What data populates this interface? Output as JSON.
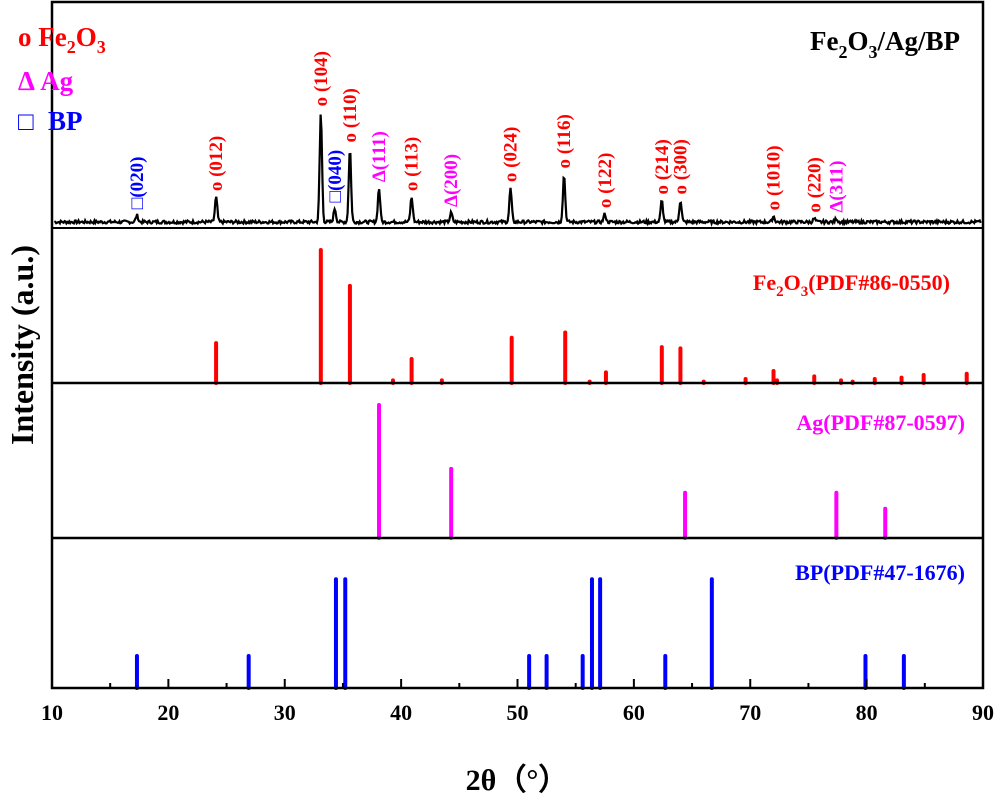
{
  "chart_data": {
    "type": "bar",
    "title": "Fe2O3/Ag/BP",
    "xlabel": "2θ（°）",
    "ylabel": "Intensity (a.u.)",
    "xlim": [
      10,
      90
    ],
    "xticks": [
      10,
      20,
      30,
      40,
      50,
      60,
      70,
      80,
      90
    ],
    "grid": false,
    "legend": [
      {
        "symbol": "o",
        "label": "Fe2O3",
        "color": "#ff0000"
      },
      {
        "symbol": "Δ",
        "label": "Ag",
        "color": "#ff00ff"
      },
      {
        "symbol": "□",
        "label": "BP",
        "color": "#0000ff"
      }
    ],
    "panels": [
      {
        "name": "Fe2O3/Ag/BP",
        "type": "line",
        "color": "#000000",
        "peaks": [
          {
            "x": 17.3,
            "h": 0.06,
            "label": "(020)",
            "phase": "BP"
          },
          {
            "x": 24.1,
            "h": 0.22,
            "label": "(012)",
            "phase": "Fe2O3"
          },
          {
            "x": 33.1,
            "h": 0.97,
            "label": "(104)",
            "phase": "Fe2O3"
          },
          {
            "x": 34.3,
            "h": 0.12,
            "label": "(040)",
            "phase": "BP"
          },
          {
            "x": 35.6,
            "h": 0.65,
            "label": "(110)",
            "phase": "Fe2O3"
          },
          {
            "x": 38.1,
            "h": 0.3,
            "label": "(111)",
            "phase": "Ag"
          },
          {
            "x": 40.9,
            "h": 0.22,
            "label": "(113)",
            "phase": "Fe2O3"
          },
          {
            "x": 44.3,
            "h": 0.08,
            "label": "(200)",
            "phase": "Ag"
          },
          {
            "x": 49.4,
            "h": 0.3,
            "label": "(024)",
            "phase": "Fe2O3"
          },
          {
            "x": 54.0,
            "h": 0.42,
            "label": "(116)",
            "phase": "Fe2O3"
          },
          {
            "x": 57.5,
            "h": 0.07,
            "label": "(122)",
            "phase": "Fe2O3"
          },
          {
            "x": 62.4,
            "h": 0.19,
            "label": "(214)",
            "phase": "Fe2O3"
          },
          {
            "x": 64.0,
            "h": 0.19,
            "label": "(300)",
            "phase": "Fe2O3"
          },
          {
            "x": 72.0,
            "h": 0.05,
            "label": "(1010)",
            "phase": "Fe2O3"
          },
          {
            "x": 75.5,
            "h": 0.03,
            "label": "(220)",
            "phase": "Fe2O3"
          },
          {
            "x": 77.4,
            "h": 0.03,
            "label": "(311)",
            "phase": "Ag"
          }
        ]
      },
      {
        "name": "Fe2O3(PDF#86-0550)",
        "color": "#ff0000",
        "x": [
          24.1,
          33.1,
          35.6,
          39.3,
          40.9,
          43.5,
          49.5,
          54.1,
          56.2,
          57.6,
          62.4,
          64.0,
          66.0,
          69.6,
          72.0,
          72.3,
          75.5,
          77.8,
          78.8,
          80.7,
          83.0,
          84.9,
          88.6
        ],
        "values": [
          30,
          100,
          73,
          2,
          18,
          2,
          34,
          38,
          1,
          8,
          27,
          26,
          1,
          3,
          9,
          2,
          5,
          2,
          1,
          3,
          4,
          6,
          7
        ]
      },
      {
        "name": "Ag(PDF#87-0597)",
        "color": "#ff00ff",
        "x": [
          38.1,
          44.3,
          64.4,
          77.4,
          81.6
        ],
        "values": [
          100,
          52,
          34,
          34,
          22
        ]
      },
      {
        "name": "BP(PDF#47-1676)",
        "color": "#0000ff",
        "x": [
          17.3,
          26.9,
          34.4,
          35.2,
          51.0,
          52.5,
          55.6,
          56.4,
          57.1,
          62.7,
          66.7,
          79.9,
          83.2
        ],
        "values": [
          25,
          25,
          85,
          85,
          25,
          25,
          25,
          85,
          85,
          25,
          85,
          25,
          25
        ]
      }
    ]
  },
  "labels": {
    "title_main": "Fe",
    "title_sub2": "2",
    "title_mid": "O",
    "title_sub3": "3",
    "title_rest": "/Ag/BP",
    "legend_fe_sym": "o Fe",
    "legend_fe_sub2": "2",
    "legend_fe_o": "O",
    "legend_fe_sub3": "3",
    "legend_ag": "Δ Ag",
    "legend_bp_sym": "□",
    "legend_bp": "BP",
    "ref_fe_a": "Fe",
    "ref_fe_sub2": "2",
    "ref_fe_b": "O",
    "ref_fe_sub3": "3",
    "ref_fe_c": "(PDF#86-0550)",
    "ref_ag": "Ag(PDF#87-0597)",
    "ref_bp": "BP(PDF#47-1676)",
    "xlabel": "2θ（°）",
    "ylabel": "Intensity (a.u.)"
  }
}
